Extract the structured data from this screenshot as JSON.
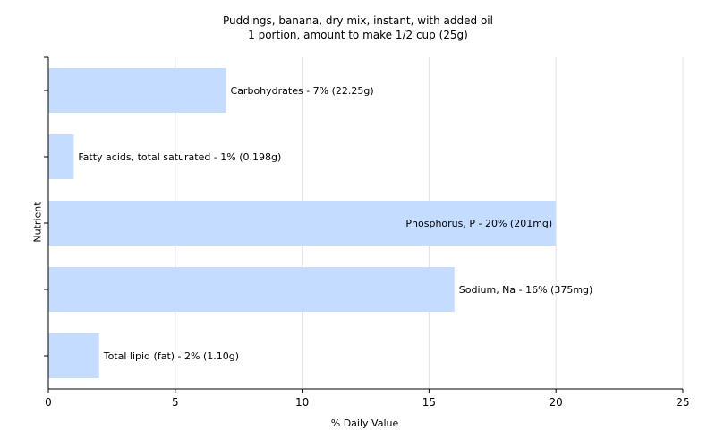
{
  "chart_data": {
    "type": "bar",
    "orientation": "horizontal",
    "title": "Puddings, banana, dry mix, instant, with added oil",
    "subtitle": "1 portion, amount to make 1/2 cup (25g)",
    "xlabel": "% Daily Value",
    "ylabel": "Nutrient",
    "xlim": [
      0,
      25
    ],
    "xticks": [
      0,
      5,
      10,
      15,
      20,
      25
    ],
    "grid": true,
    "bar_color": "#c3dcff",
    "categories": [
      "Carbohydrates",
      "Fatty acids, total saturated",
      "Phosphorus, P",
      "Sodium, Na",
      "Total lipid (fat)"
    ],
    "values": [
      7,
      1,
      20,
      16,
      2
    ],
    "labels": [
      "Carbohydrates - 7% (22.25g)",
      "Fatty acids, total saturated - 1% (0.198g)",
      "Phosphorus, P - 20% (201mg)",
      "Sodium, Na - 16% (375mg)",
      "Total lipid (fat) - 2% (1.10g)"
    ]
  }
}
